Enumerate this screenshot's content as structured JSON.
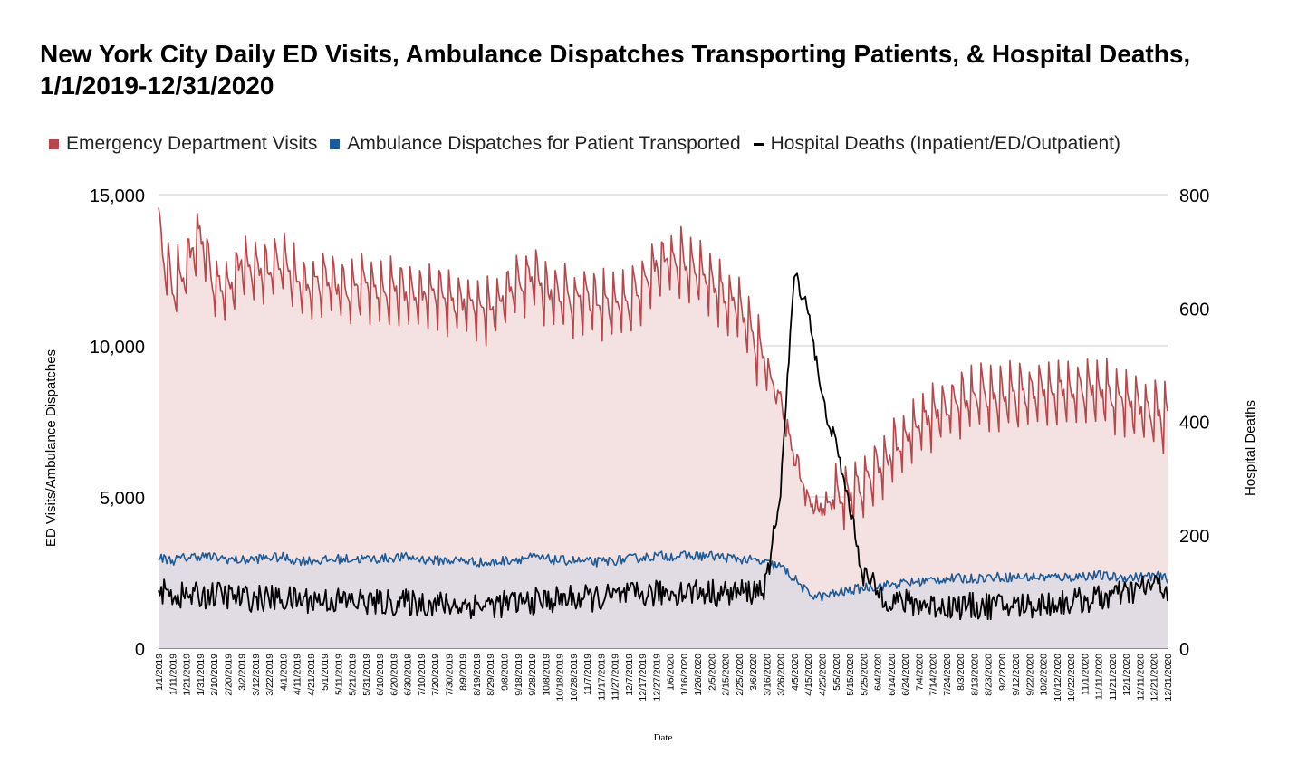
{
  "chart_data": {
    "type": "area+line",
    "title": "New York City Daily ED Visits, Ambulance Dispatches Transporting Patients, & Hospital Deaths, 1/1/2019-12/31/2020",
    "xlabel": "Date",
    "ylabel_left": "ED Visits/Ambulance Dispatches",
    "ylabel_right": "Hospital Deaths",
    "ylim_left": [
      0,
      15000
    ],
    "ylim_right": [
      0,
      800
    ],
    "yticks_left": [
      "0",
      "5,000",
      "10,000",
      "15,000"
    ],
    "yticks_right": [
      "0",
      "200",
      "400",
      "600",
      "800"
    ],
    "x_tick_labels": [
      "1/1/2019",
      "1/11/2019",
      "1/21/2019",
      "1/31/2019",
      "2/10/2019",
      "2/20/2019",
      "3/2/2019",
      "3/12/2019",
      "3/22/2019",
      "4/1/2019",
      "4/11/2019",
      "4/21/2019",
      "5/1/2019",
      "5/11/2019",
      "5/21/2019",
      "5/31/2019",
      "6/10/2019",
      "6/20/2019",
      "6/30/2019",
      "7/10/2019",
      "7/20/2019",
      "7/30/2019",
      "8/9/2019",
      "8/19/2019",
      "8/29/2019",
      "9/8/2019",
      "9/18/2019",
      "9/28/2019",
      "10/8/2019",
      "10/18/2019",
      "10/28/2019",
      "11/7/2019",
      "11/17/2019",
      "11/27/2019",
      "12/7/2019",
      "12/17/2019",
      "12/27/2019",
      "1/6/2020",
      "1/16/2020",
      "1/26/2020",
      "2/5/2020",
      "2/15/2020",
      "2/25/2020",
      "3/6/2020",
      "3/16/2020",
      "3/26/2020",
      "4/5/2020",
      "4/15/2020",
      "4/25/2020",
      "5/5/2020",
      "5/15/2020",
      "5/25/2020",
      "6/4/2020",
      "6/14/2020",
      "6/24/2020",
      "7/4/2020",
      "7/14/2020",
      "7/24/2020",
      "8/3/2020",
      "8/13/2020",
      "8/23/2020",
      "9/2/2020",
      "9/12/2020",
      "9/22/2020",
      "10/2/2020",
      "10/12/2020",
      "10/22/2020",
      "11/1/2020",
      "11/11/2020",
      "11/21/2020",
      "12/1/2020",
      "12/11/2020",
      "12/21/2020",
      "12/31/2020"
    ],
    "x_tick_interval_days": 10,
    "n_days": 731,
    "legend_position": "top",
    "grid": true,
    "series": [
      {
        "name": "Emergency Department Visits",
        "axis": "left",
        "color": "#b7474a",
        "fill": "#f4e1e1",
        "sampled_every_days": 10,
        "approx_values": [
          13800,
          11800,
          12600,
          13600,
          12000,
          11800,
          12700,
          12600,
          12400,
          12800,
          12200,
          11800,
          12300,
          11900,
          11700,
          12100,
          11800,
          11900,
          11700,
          11600,
          11700,
          11500,
          11400,
          11300,
          11200,
          11600,
          12000,
          12400,
          11800,
          11700,
          11500,
          11500,
          11400,
          11300,
          11400,
          12000,
          12600,
          12800,
          12700,
          12500,
          12100,
          11600,
          11200,
          10200,
          9400,
          8200,
          6400,
          5000,
          4500,
          4900,
          5100,
          5400,
          5900,
          6400,
          6900,
          7300,
          7700,
          7900,
          8100,
          8200,
          8300,
          8300,
          8300,
          8400,
          8400,
          8500,
          8500,
          8600,
          8500,
          8300,
          8200,
          7900,
          7800,
          7600
        ],
        "weekly_swing": 1500
      },
      {
        "name": "Ambulance Dispatches for Patient Transported",
        "axis": "left",
        "color": "#1d5a96",
        "fill": "#e1dbe3",
        "sampled_every_days": 10,
        "approx_values": [
          3000,
          2900,
          3000,
          3050,
          3000,
          2950,
          2900,
          2950,
          3000,
          3000,
          2900,
          2900,
          2900,
          2950,
          2950,
          2950,
          2950,
          3000,
          3000,
          2950,
          2900,
          2900,
          2900,
          2850,
          2800,
          2900,
          2950,
          3000,
          2950,
          2900,
          2900,
          2850,
          2850,
          2900,
          2950,
          3000,
          3050,
          3050,
          3050,
          3050,
          3050,
          3000,
          2950,
          2900,
          2800,
          2700,
          2300,
          1800,
          1700,
          1800,
          1900,
          2000,
          2050,
          2100,
          2150,
          2200,
          2250,
          2300,
          2300,
          2300,
          2350,
          2350,
          2350,
          2350,
          2350,
          2350,
          2350,
          2400,
          2400,
          2350,
          2350,
          2350,
          2400,
          2300
        ]
      },
      {
        "name": "Hospital Deaths (Inpatient/ED/Outpatient)",
        "axis": "right",
        "color": "#000000",
        "sampled_every_days": 10,
        "approx_values": [
          100,
          95,
          92,
          92,
          95,
          92,
          88,
          88,
          88,
          86,
          85,
          86,
          85,
          84,
          82,
          82,
          80,
          80,
          80,
          80,
          78,
          76,
          76,
          76,
          76,
          78,
          80,
          82,
          84,
          86,
          88,
          88,
          88,
          90,
          92,
          94,
          96,
          98,
          100,
          100,
          98,
          96,
          98,
          100,
          110,
          280,
          660,
          600,
          440,
          360,
          250,
          130,
          100,
          85,
          80,
          78,
          75,
          74,
          74,
          74,
          74,
          74,
          75,
          76,
          78,
          80,
          82,
          84,
          88,
          92,
          96,
          105,
          112,
          105
        ]
      }
    ]
  }
}
